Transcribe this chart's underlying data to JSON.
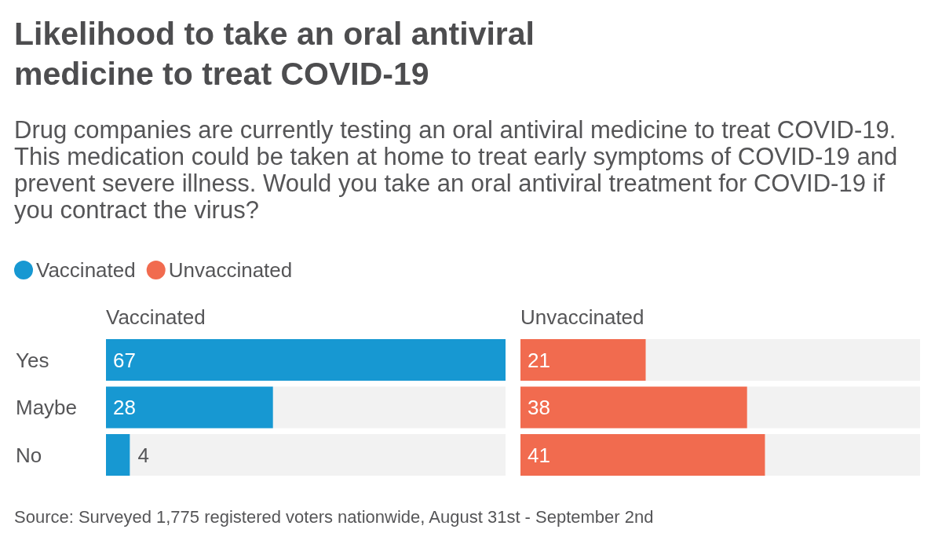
{
  "chart_data": [
    {
      "type": "bar",
      "orientation": "horizontal",
      "title": "Likelihood to take an oral antiviral medicine to treat COVID-19",
      "subtitle": "Drug companies are currently testing an oral antiviral medicine to treat COVID-19. This medication could be taken at home to treat early symptoms of COVID-19 and prevent severe illness. Would you take an oral antiviral treatment for COVID-19 if you contract the virus?",
      "xlabel": "Vaccinated",
      "categories": [
        "Yes",
        "Maybe",
        "No"
      ],
      "series": [
        {
          "name": "Vaccinated",
          "color": "#1798d2",
          "values": [
            67,
            28,
            4
          ]
        }
      ],
      "xlim": [
        0,
        67
      ],
      "data_labels": true,
      "legend": "top left",
      "tick_labels": "y",
      "annotations": [
        "Source: Surveyed 1,775 registered voters nationwide, August 31st - September 2nd"
      ]
    },
    {
      "type": "bar",
      "orientation": "horizontal",
      "xlabel": "Unvaccinated",
      "categories": [
        null,
        null,
        null
      ],
      "series": [
        {
          "name": "Unvaccinated",
          "color": "#f16b4f",
          "values": [
            21,
            38,
            41
          ]
        }
      ],
      "xlim": [
        0,
        67
      ],
      "data_labels": true,
      "legend": "top left"
    }
  ]
}
